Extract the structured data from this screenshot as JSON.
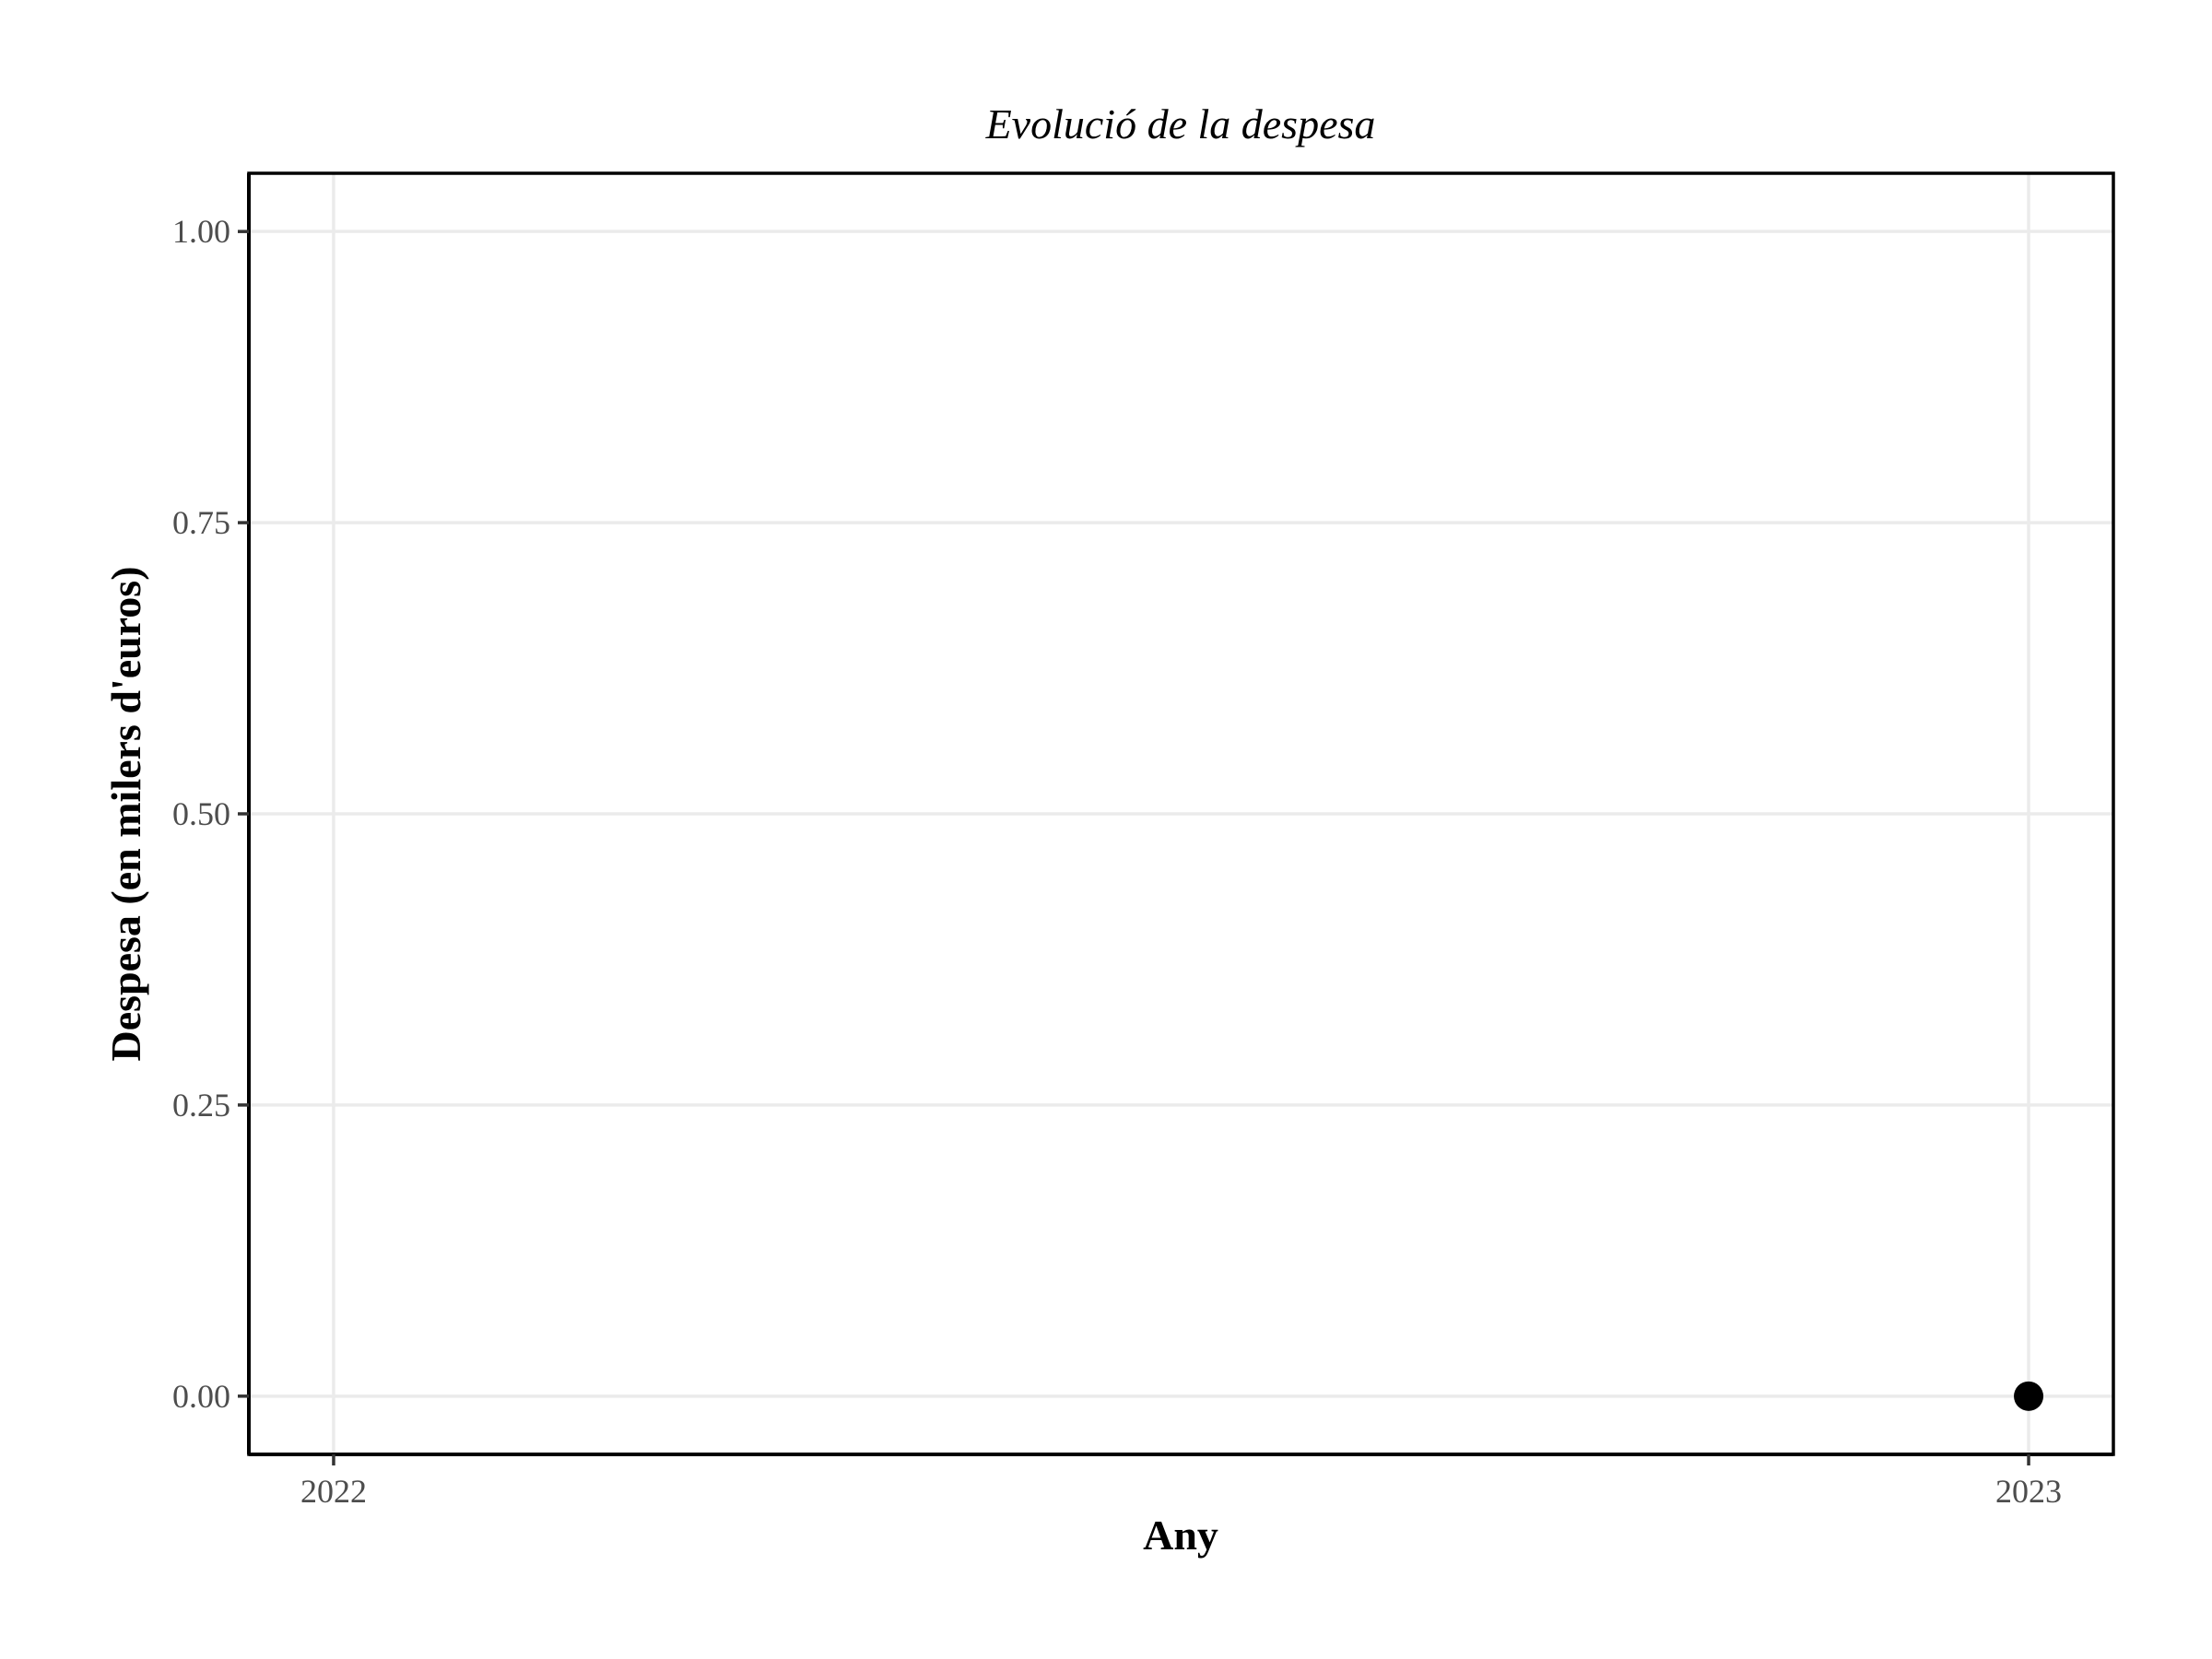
{
  "chart_data": {
    "type": "scatter",
    "title": "Evolució de la despesa",
    "xlabel": "Any",
    "ylabel": "Despesa (en milers d'euros)",
    "xlim": [
      2021.95,
      2023.05
    ],
    "ylim": [
      -0.05,
      1.05
    ],
    "x_ticks": [
      2022,
      2023
    ],
    "x_tick_labels": [
      "2022",
      "2023"
    ],
    "y_ticks": [
      0,
      0.25,
      0.5,
      0.75,
      1.0
    ],
    "y_tick_labels": [
      "0.00",
      "0.25",
      "0.50",
      "0.75",
      "1.00"
    ],
    "grid": true,
    "legend": "none",
    "point_color": "#000000",
    "series": [
      {
        "x": [
          2023
        ],
        "y": [
          0
        ]
      }
    ]
  }
}
